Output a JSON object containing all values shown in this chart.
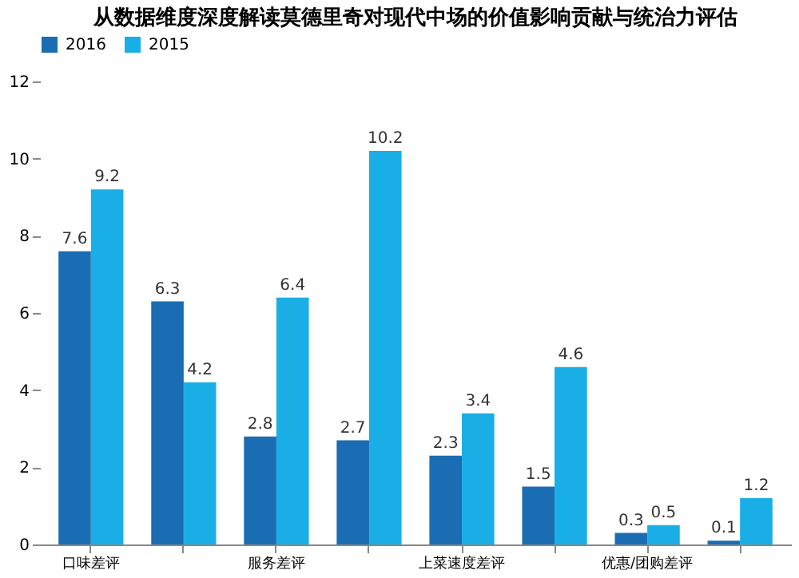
{
  "chart_data": {
    "type": "bar",
    "title": "从数据维度深度解读莫德里奇对现代中场的价值影响贡献与统治力评估",
    "categories": [
      "口味差评",
      null,
      "服务差评",
      null,
      "上菜速度差评",
      null,
      "优惠/团购差评",
      null
    ],
    "series": [
      {
        "name": "2016",
        "color": "#1a6db3",
        "values": [
          7.6,
          6.3,
          2.8,
          2.7,
          2.3,
          1.5,
          0.3,
          0.1
        ]
      },
      {
        "name": "2015",
        "color": "#1aaee6",
        "values": [
          9.2,
          4.2,
          6.4,
          10.2,
          3.4,
          4.6,
          0.5,
          1.2
        ]
      }
    ],
    "ylim": [
      0,
      12
    ],
    "yticks": [
      0,
      2,
      4,
      6,
      8,
      10,
      12
    ],
    "data_labels": true,
    "grid": false,
    "legend": "top"
  }
}
